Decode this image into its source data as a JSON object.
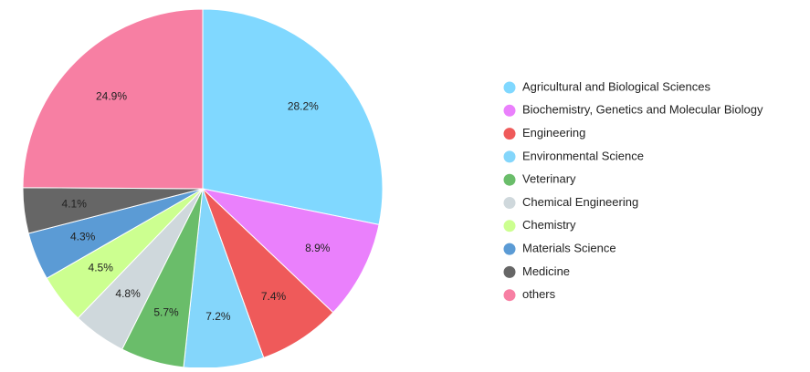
{
  "chart_data": {
    "type": "pie",
    "categories": [
      "Agricultural and Biological Sciences",
      "Biochemistry, Genetics and Molecular Biology",
      "Engineering",
      "Environmental Science",
      "Veterinary",
      "Chemical Engineering",
      "Chemistry",
      "Materials Science",
      "Medicine",
      "others"
    ],
    "values": [
      28.2,
      8.9,
      7.4,
      7.2,
      5.7,
      4.8,
      4.5,
      4.3,
      4.1,
      24.9
    ],
    "value_labels": [
      "28.2%",
      "8.9%",
      "7.4%",
      "7.2%",
      "5.7%",
      "4.8%",
      "4.5%",
      "4.3%",
      "4.1%",
      "24.9%"
    ],
    "colors": [
      "#80d8ff",
      "#ea80fc",
      "#ef5a5a",
      "#84d6fb",
      "#6abd6a",
      "#cfd8dc",
      "#ccff90",
      "#5b9bd5",
      "#666666",
      "#f77fa3"
    ],
    "legend": "right"
  }
}
